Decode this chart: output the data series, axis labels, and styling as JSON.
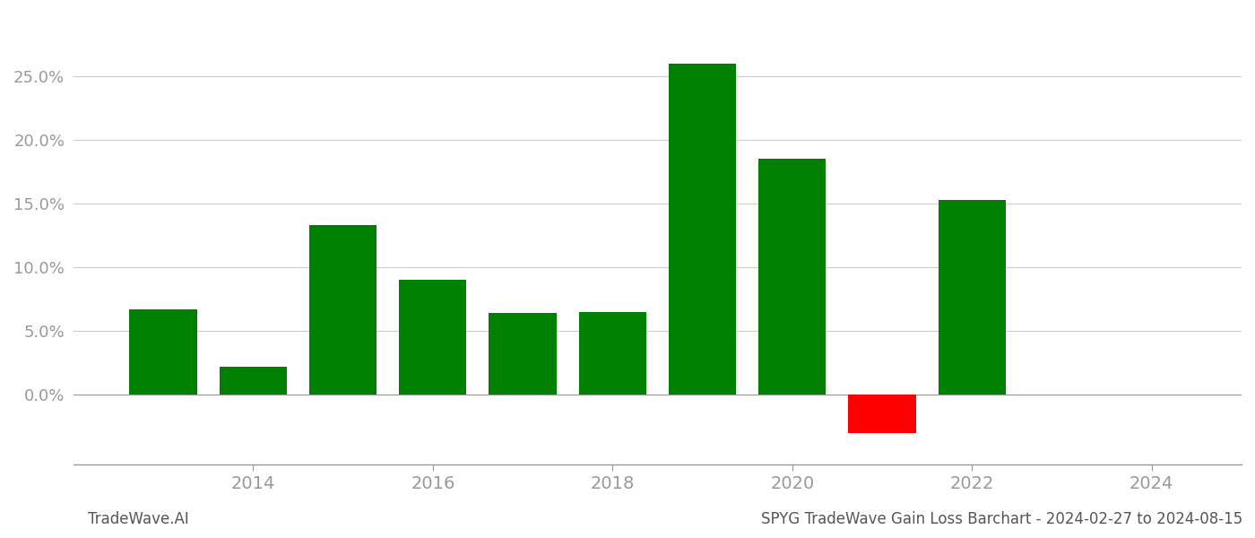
{
  "years": [
    2013,
    2014,
    2015,
    2016,
    2017,
    2018,
    2019,
    2020,
    2021,
    2022
  ],
  "values": [
    0.067,
    0.022,
    0.133,
    0.09,
    0.064,
    0.065,
    0.26,
    0.185,
    -0.03,
    0.153
  ],
  "bar_colors": [
    "#008000",
    "#008000",
    "#008000",
    "#008000",
    "#008000",
    "#008000",
    "#008000",
    "#008000",
    "#ff0000",
    "#008000"
  ],
  "footer_left": "TradeWave.AI",
  "footer_right": "SPYG TradeWave Gain Loss Barchart - 2024-02-27 to 2024-08-15",
  "ylim_min": -0.055,
  "ylim_max": 0.295,
  "yticks": [
    0.0,
    0.05,
    0.1,
    0.15,
    0.2,
    0.25
  ],
  "xticks": [
    2014,
    2016,
    2018,
    2020,
    2022,
    2024
  ],
  "xlim_min": 2012.0,
  "xlim_max": 2025.0,
  "background_color": "#ffffff",
  "grid_color": "#cccccc",
  "bar_width": 0.75,
  "tick_color": "#999999",
  "footer_fontsize": 12
}
